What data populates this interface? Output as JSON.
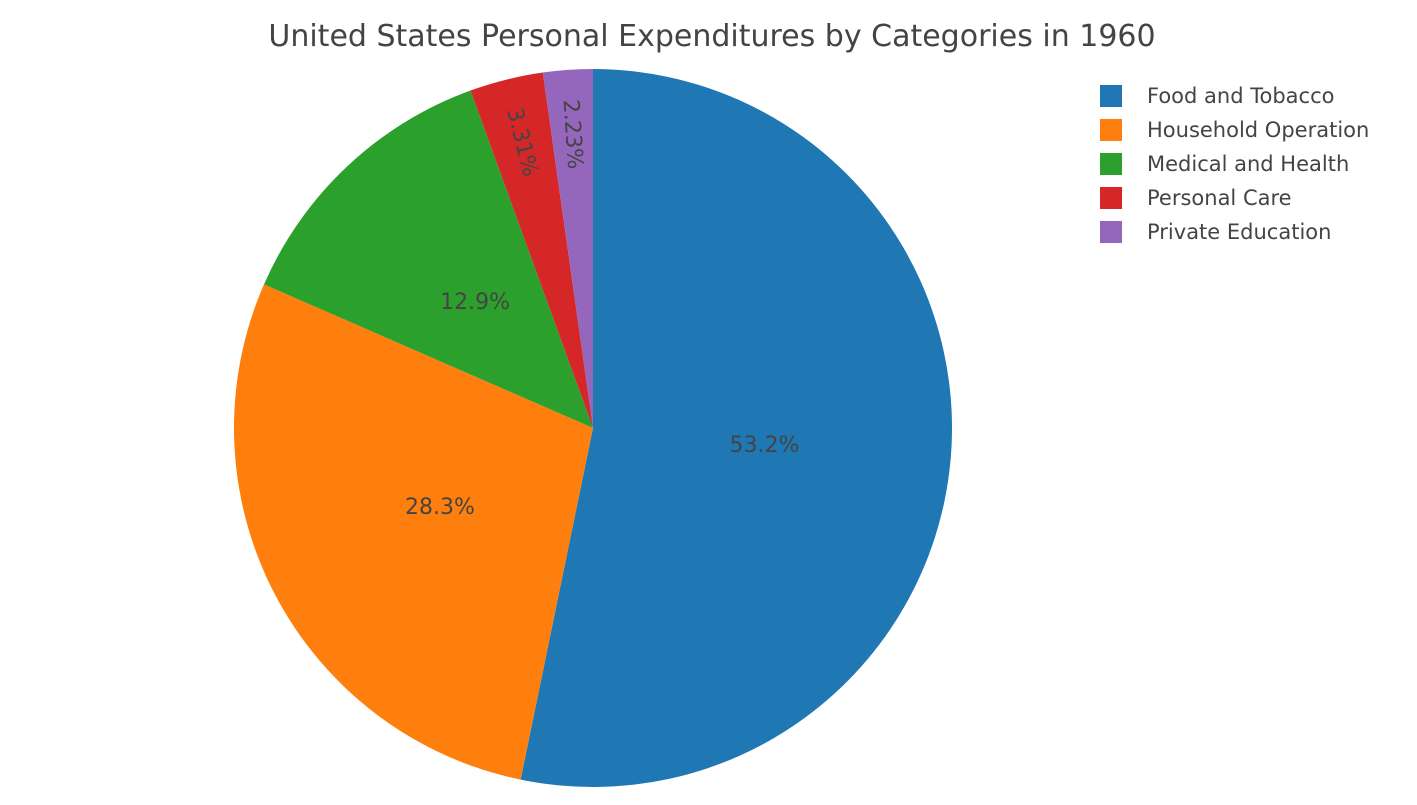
{
  "chart_data": {
    "type": "pie",
    "title": "United States Personal Expenditures by Categories in 1960",
    "categories": [
      "Food and Tobacco",
      "Household Operation",
      "Medical and Health",
      "Personal Care",
      "Private Education"
    ],
    "values": [
      53.2,
      28.3,
      12.9,
      3.31,
      2.23
    ],
    "labels": [
      "53.2%",
      "28.3%",
      "12.9%",
      "3.31%",
      "2.23%"
    ],
    "colors": [
      "#1f77b4",
      "#ff7f0e",
      "#2ca02c",
      "#d62728",
      "#9467bd"
    ],
    "direction": "clockwise",
    "start": "top",
    "legend_position": "top-right"
  }
}
